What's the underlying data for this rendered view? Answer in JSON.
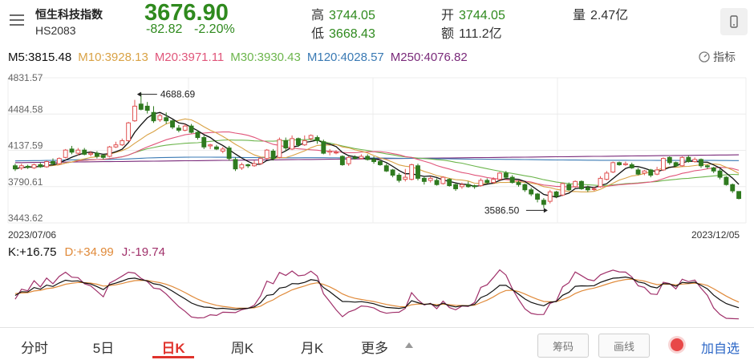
{
  "header": {
    "index_name": "恒生科技指数",
    "index_code": "HS2083",
    "price": "3676.90",
    "change": "-82.82",
    "change_pct": "-2.20%",
    "quote": {
      "high_label": "高",
      "high_value": "3744.05",
      "low_label": "低",
      "low_value": "3668.43",
      "open_label": "开",
      "open_value": "3744.05",
      "amount_label": "额",
      "amount_value": "111.2亿",
      "volume_label": "量",
      "volume_value": "2.47亿"
    },
    "menu_icon": "hamburger-menu-icon",
    "landscape_icon": "rotate-phone-icon"
  },
  "ma_legend": {
    "m5": "M5:3815.48",
    "m10": "M10:3928.13",
    "m20": "M20:3971.11",
    "m30": "M30:3930.43",
    "m120": "M120:4028.57",
    "m250": "M250:4076.82",
    "indicator_label": "指标",
    "indicator_icon": "speedometer-icon"
  },
  "chart_data": [
    {
      "type": "candlestick",
      "title": "",
      "y_ticks": [
        "4831.57",
        "4484.58",
        "4137.59",
        "3790.61",
        "3443.62"
      ],
      "ylim": [
        3443.62,
        4831.57
      ],
      "x_start_label": "2023/07/06",
      "x_end_label": "2023/12/05",
      "grid": true,
      "annotations": [
        {
          "text": "4688.69",
          "value": 4688.69
        },
        {
          "text": "3586.50",
          "value": 3586.5
        }
      ],
      "candles": [
        [
          3990,
          3960,
          4010,
          3940
        ],
        [
          3970,
          3990,
          4010,
          3950
        ],
        [
          3985,
          3975,
          4000,
          3960
        ],
        [
          3970,
          4000,
          4010,
          3960
        ],
        [
          4000,
          3980,
          4020,
          3970
        ],
        [
          3980,
          4030,
          4040,
          3970
        ],
        [
          4030,
          4010,
          4060,
          3990
        ],
        [
          4010,
          4060,
          4070,
          4000
        ],
        [
          4070,
          4140,
          4150,
          4060
        ],
        [
          4150,
          4120,
          4180,
          4100
        ],
        [
          4110,
          4140,
          4160,
          4090
        ],
        [
          4140,
          4100,
          4160,
          4090
        ],
        [
          4100,
          4110,
          4130,
          4080
        ],
        [
          4110,
          4080,
          4130,
          4060
        ],
        [
          4090,
          4070,
          4100,
          4050
        ],
        [
          4080,
          4170,
          4180,
          4070
        ],
        [
          4170,
          4190,
          4220,
          4160
        ],
        [
          4190,
          4230,
          4250,
          4180
        ],
        [
          4230,
          4400,
          4410,
          4220
        ],
        [
          4420,
          4560,
          4620,
          4410
        ],
        [
          4580,
          4530,
          4688.69,
          4520
        ],
        [
          4560,
          4520,
          4600,
          4490
        ],
        [
          4500,
          4420,
          4560,
          4400
        ],
        [
          4430,
          4470,
          4490,
          4410
        ],
        [
          4450,
          4420,
          4500,
          4390
        ],
        [
          4420,
          4360,
          4430,
          4340
        ],
        [
          4350,
          4330,
          4380,
          4310
        ],
        [
          4330,
          4370,
          4390,
          4320
        ],
        [
          4370,
          4310,
          4390,
          4300
        ],
        [
          4310,
          4260,
          4330,
          4240
        ],
        [
          4260,
          4170,
          4280,
          4150
        ],
        [
          4180,
          4190,
          4200,
          4150
        ],
        [
          4170,
          4150,
          4190,
          4140
        ],
        [
          4130,
          4150,
          4170,
          4110
        ],
        [
          4160,
          4060,
          4180,
          4040
        ],
        [
          4050,
          3960,
          4070,
          3940
        ],
        [
          3970,
          4000,
          4020,
          3950
        ],
        [
          4000,
          3990,
          4010,
          3970
        ],
        [
          3990,
          4010,
          4040,
          3980
        ],
        [
          4010,
          4060,
          4070,
          4000
        ],
        [
          4060,
          4140,
          4150,
          4050
        ],
        [
          4130,
          4060,
          4150,
          4040
        ],
        [
          4070,
          4240,
          4260,
          4060
        ],
        [
          4230,
          4160,
          4260,
          4130
        ],
        [
          4150,
          4250,
          4280,
          4140
        ],
        [
          4250,
          4190,
          4260,
          4170
        ],
        [
          4190,
          4230,
          4280,
          4180
        ],
        [
          4250,
          4280,
          4290,
          4230
        ],
        [
          4260,
          4230,
          4280,
          4200
        ],
        [
          4220,
          4110,
          4240,
          4100
        ],
        [
          4120,
          4130,
          4150,
          4090
        ],
        [
          4120,
          4120,
          4140,
          4100
        ],
        [
          4080,
          4000,
          4090,
          3990
        ],
        [
          4010,
          4070,
          4080,
          3990
        ],
        [
          4070,
          4060,
          4090,
          4050
        ],
        [
          4060,
          4080,
          4100,
          4050
        ],
        [
          4080,
          4050,
          4100,
          4040
        ],
        [
          4050,
          4030,
          4080,
          4010
        ],
        [
          4030,
          4000,
          4050,
          3990
        ],
        [
          3990,
          3940,
          4010,
          3930
        ],
        [
          3950,
          3900,
          3960,
          3880
        ],
        [
          3900,
          3850,
          3920,
          3830
        ],
        [
          3860,
          3880,
          3960,
          3840
        ],
        [
          3860,
          4000,
          4010,
          3850
        ],
        [
          3990,
          3870,
          4010,
          3850
        ],
        [
          3870,
          3840,
          3890,
          3810
        ],
        [
          3850,
          3870,
          3890,
          3830
        ],
        [
          3850,
          3810,
          3870,
          3800
        ],
        [
          3820,
          3880,
          3890,
          3810
        ],
        [
          3860,
          3800,
          3870,
          3790
        ],
        [
          3810,
          3770,
          3820,
          3750
        ],
        [
          3790,
          3810,
          3830,
          3770
        ],
        [
          3810,
          3790,
          3840,
          3780
        ],
        [
          3800,
          3790,
          3810,
          3770
        ],
        [
          3800,
          3850,
          3870,
          3790
        ],
        [
          3850,
          3830,
          3870,
          3820
        ],
        [
          3830,
          3860,
          3880,
          3820
        ],
        [
          3860,
          3920,
          3930,
          3850
        ],
        [
          3920,
          3880,
          3940,
          3860
        ],
        [
          3880,
          3830,
          3900,
          3820
        ],
        [
          3830,
          3810,
          3850,
          3790
        ],
        [
          3810,
          3760,
          3820,
          3740
        ],
        [
          3760,
          3720,
          3780,
          3700
        ],
        [
          3720,
          3670,
          3730,
          3640
        ],
        [
          3660,
          3620,
          3680,
          3586.5
        ],
        [
          3650,
          3740,
          3760,
          3630
        ],
        [
          3740,
          3700,
          3750,
          3680
        ],
        [
          3710,
          3820,
          3830,
          3700
        ],
        [
          3810,
          3760,
          3830,
          3750
        ],
        [
          3790,
          3840,
          3850,
          3780
        ],
        [
          3840,
          3770,
          3850,
          3760
        ],
        [
          3780,
          3760,
          3800,
          3740
        ],
        [
          3770,
          3770,
          3790,
          3750
        ],
        [
          3790,
          3870,
          3890,
          3780
        ],
        [
          3860,
          3920,
          3940,
          3850
        ],
        [
          3930,
          4020,
          4030,
          3920
        ],
        [
          4020,
          4000,
          4030,
          3990
        ],
        [
          4000,
          4010,
          4030,
          3990
        ],
        [
          4000,
          3970,
          4020,
          3960
        ],
        [
          3950,
          3910,
          3970,
          3900
        ],
        [
          3920,
          3940,
          3950,
          3900
        ],
        [
          3950,
          3900,
          3960,
          3880
        ],
        [
          3910,
          3950,
          3980,
          3900
        ],
        [
          3950,
          4060,
          4070,
          3940
        ],
        [
          4070,
          4020,
          4080,
          4000
        ],
        [
          4020,
          3990,
          4030,
          3980
        ],
        [
          3990,
          4070,
          4080,
          3980
        ],
        [
          4070,
          4030,
          4090,
          4020
        ],
        [
          4030,
          4050,
          4070,
          4020
        ],
        [
          4050,
          3990,
          4060,
          3970
        ],
        [
          3990,
          3980,
          4000,
          3960
        ],
        [
          3970,
          3940,
          3980,
          3920
        ],
        [
          3940,
          3880,
          3960,
          3860
        ],
        [
          3880,
          3810,
          3890,
          3800
        ],
        [
          3810,
          3750,
          3820,
          3730
        ],
        [
          3744.05,
          3676.9,
          3744.05,
          3668.43
        ]
      ],
      "series_colors": {
        "m5": "#111111",
        "m10": "#d9a245",
        "m20": "#e0557a",
        "m30": "#6cb54c",
        "m120": "#3a7ab4",
        "m250": "#7a2a7a",
        "up": "#e05252",
        "down": "#2f7a1f"
      }
    },
    {
      "type": "line",
      "title": "",
      "legend": {
        "k": "K:+16.75",
        "d": "D:+34.99",
        "j": "J:-19.74"
      },
      "series_colors": {
        "k": "#111111",
        "d": "#e08a3a",
        "j": "#a0306a"
      }
    }
  ],
  "tabs": [
    {
      "label": "分时",
      "active": false
    },
    {
      "label": "5日",
      "active": false
    },
    {
      "label": "日K",
      "active": true
    },
    {
      "label": "周K",
      "active": false
    },
    {
      "label": "月K",
      "active": false
    },
    {
      "label": "更多",
      "active": false
    }
  ],
  "more_icon": "triangle-up-icon",
  "buttons": {
    "chips": "筹码",
    "draw": "画线",
    "add_watchlist": "加自选",
    "record_icon": "red-dot-icon"
  },
  "colors": {
    "price_green": "#2f8a1e",
    "active_tab": "#e0332c",
    "link_blue": "#2b66c6"
  }
}
